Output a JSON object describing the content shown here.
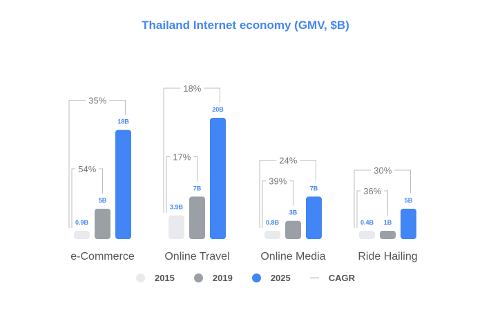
{
  "chart_data": {
    "type": "bar",
    "title": "Thailand Internet economy (GMV, $B)",
    "categories": [
      "e-Commerce",
      "Online Travel",
      "Online Media",
      "Ride Hailing"
    ],
    "series": [
      {
        "name": "2015",
        "color": "#e8eaed",
        "values": [
          0.9,
          3.9,
          0.8,
          0.4
        ],
        "labels": [
          "0.9B",
          "3.9B",
          "0.8B",
          "0.4B"
        ]
      },
      {
        "name": "2019",
        "color": "#9aa0a6",
        "values": [
          5,
          7,
          3,
          1
        ],
        "labels": [
          "5B",
          "7B",
          "3B",
          "1B"
        ]
      },
      {
        "name": "2025",
        "color": "#4285f4",
        "values": [
          18,
          20,
          7,
          5
        ],
        "labels": [
          "18B",
          "20B",
          "7B",
          "5B"
        ]
      }
    ],
    "cagr": [
      {
        "short": "54%",
        "long": "35%"
      },
      {
        "short": "17%",
        "long": "18%"
      },
      {
        "short": "39%",
        "long": "24%"
      },
      {
        "short": "36%",
        "long": "30%"
      }
    ],
    "legend": [
      "2015",
      "2019",
      "2025",
      "CAGR"
    ],
    "legend_position": "bottom",
    "grid": false
  }
}
